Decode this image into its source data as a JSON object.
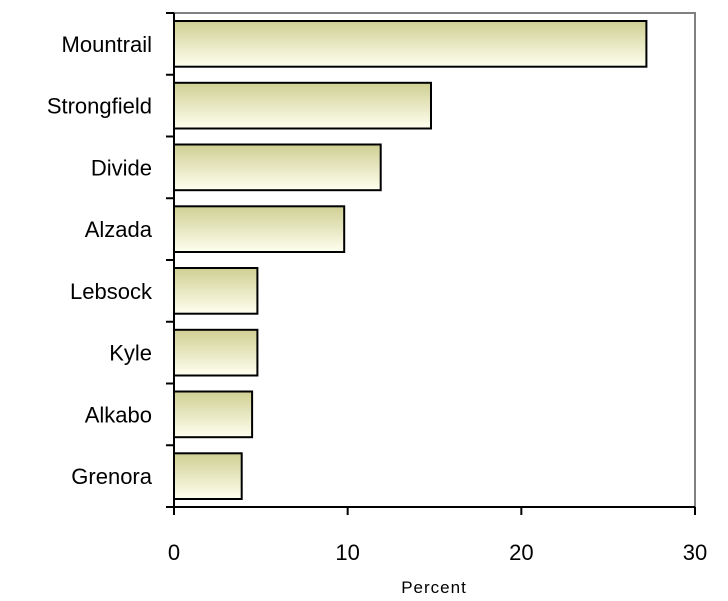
{
  "chart_data": {
    "type": "bar",
    "orientation": "horizontal",
    "title": "",
    "xlabel": "Percent",
    "ylabel": "",
    "categories": [
      "Mountrail",
      "Strongfield",
      "Divide",
      "Alzada",
      "Lebsock",
      "Kyle",
      "Alkabo",
      "Grenora"
    ],
    "values": [
      27.2,
      14.8,
      11.9,
      9.8,
      4.8,
      4.8,
      4.5,
      3.9
    ],
    "xlim": [
      0,
      30
    ],
    "x_ticks": [
      "0",
      "10",
      "20",
      "30"
    ],
    "grid": false,
    "legend": "none",
    "colors": {
      "bar_light": "#fffff0",
      "bar_dark": "#cfcf93",
      "bar_stroke": "#000000",
      "frame": "#808080",
      "axis": "#000000"
    }
  }
}
